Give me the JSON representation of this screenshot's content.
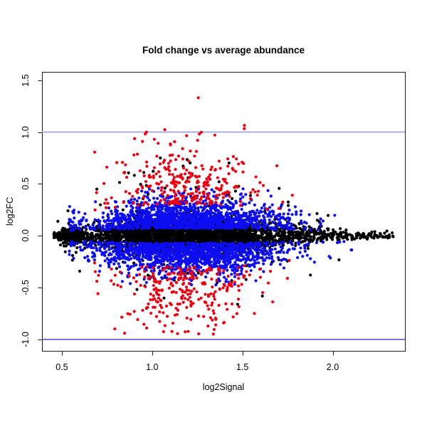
{
  "chart_data": {
    "type": "scatter",
    "title": "Fold change vs average abundance",
    "xlabel": "log2Signal",
    "ylabel": "log2FC",
    "xlim": [
      0.39,
      2.4
    ],
    "ylim": [
      -1.11,
      1.58
    ],
    "x_ticks": [
      0.5,
      1.0,
      1.5,
      2.0
    ],
    "x_tick_labels": [
      "0.5",
      "1.0",
      "1.5",
      "2.0"
    ],
    "y_ticks": [
      -1.0,
      -0.5,
      0.0,
      0.5,
      1.0,
      1.5
    ],
    "y_tick_labels": [
      "-1.0",
      "-0.5",
      "0.0",
      "0.5",
      "1.0",
      "1.5"
    ],
    "grid": false,
    "legend": "none",
    "background": "#ffffff",
    "box_color": "#1a1a1a",
    "point_radius_px": 2.1,
    "reference_lines": [
      {
        "y": 1.0,
        "color": "#9b9bee",
        "width": 1.6
      },
      {
        "y": -1.0,
        "color": "#3b3bcc",
        "width": 1.4
      }
    ],
    "data_extent": {
      "x": [
        0.46,
        2.34
      ],
      "y": [
        -1.0,
        1.47
      ]
    },
    "envelope": {
      "x_min": 0.44,
      "peak_lo": 1.0,
      "peak_hi": 1.45,
      "x_max": 2.38,
      "exp_lo": 0.6,
      "exp_hi": 1.1,
      "floor": 0.02
    },
    "seed": 42,
    "series": [
      {
        "name": "black-points",
        "color": "#000000",
        "count": 3600,
        "kind": "core",
        "x_mixture": [
          {
            "weight": 0.12,
            "mean": 0.53,
            "sd": 0.045
          },
          {
            "weight": 0.64,
            "mean": 1.13,
            "sd": 0.26
          },
          {
            "weight": 0.24,
            "mean": 1.55,
            "sd": 0.35
          }
        ],
        "x_clip": [
          0.455,
          2.34
        ],
        "y_sd": 0.085,
        "y_sd_floor": 0.12,
        "outlier_fraction": 0.06,
        "outlier_scale": [
          2.5,
          6.0
        ],
        "y_cap": 0.75
      },
      {
        "name": "blue-points",
        "color": "#0d0df2",
        "count": 2900,
        "kind": "band",
        "x_mixture": [
          {
            "weight": 1.0,
            "mean": 1.2,
            "sd": 0.27
          }
        ],
        "x_clip": [
          0.54,
          2.25
        ],
        "y_offset": 0.07,
        "y_sd": 0.14,
        "y_cap": 0.48,
        "y_floor": 0.03,
        "env_mix": 0.55
      },
      {
        "name": "red-points",
        "color": "#ee0011",
        "count": 560,
        "kind": "band",
        "x_mixture": [
          {
            "weight": 1.0,
            "mean": 1.2,
            "sd": 0.22
          }
        ],
        "x_clip": [
          0.68,
          1.95
        ],
        "y_offset": 0.3,
        "y_sd": 0.3,
        "y_cap_pos": 1.5,
        "y_cap_neg": 0.95,
        "y_floor": 0.24,
        "env_mix": 0.65
      }
    ]
  }
}
